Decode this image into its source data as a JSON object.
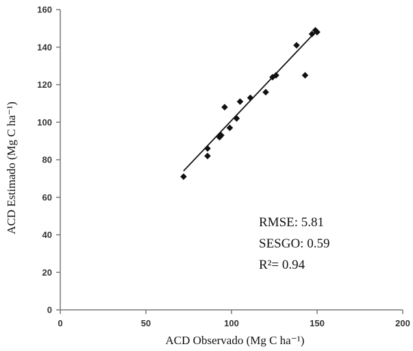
{
  "chart_data": {
    "type": "scatter",
    "xlabel": "ACD  Observado (Mg C ha⁻¹)",
    "ylabel": "ACD Estimado  (Mg C ha⁻¹)",
    "xlim": [
      0,
      200
    ],
    "ylim": [
      0,
      160
    ],
    "x_ticks": [
      0,
      50,
      100,
      150,
      200
    ],
    "y_ticks": [
      0,
      20,
      40,
      60,
      80,
      100,
      120,
      140,
      160
    ],
    "grid": false,
    "points": [
      {
        "x": 72,
        "y": 71
      },
      {
        "x": 86,
        "y": 82
      },
      {
        "x": 86,
        "y": 86
      },
      {
        "x": 93,
        "y": 92
      },
      {
        "x": 94,
        "y": 93
      },
      {
        "x": 96,
        "y": 108
      },
      {
        "x": 99,
        "y": 97
      },
      {
        "x": 103,
        "y": 102
      },
      {
        "x": 105,
        "y": 111
      },
      {
        "x": 111,
        "y": 113
      },
      {
        "x": 120,
        "y": 116
      },
      {
        "x": 124,
        "y": 124
      },
      {
        "x": 126,
        "y": 125
      },
      {
        "x": 138,
        "y": 141
      },
      {
        "x": 143,
        "y": 125
      },
      {
        "x": 147,
        "y": 147
      },
      {
        "x": 149,
        "y": 149
      },
      {
        "x": 150,
        "y": 148
      }
    ],
    "trendline": {
      "x": [
        72,
        150
      ],
      "y": [
        74,
        149
      ]
    },
    "annotations": [
      "RMSE: 5.81",
      "SESGO: 0.59",
      "R²= 0.94"
    ]
  }
}
